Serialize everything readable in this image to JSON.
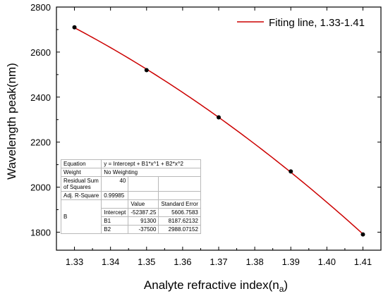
{
  "chart_data": {
    "type": "line",
    "xlabel": "Analyte refractive index(n",
    "xlabel_sub": "a",
    "xlabel_end": ")",
    "ylabel": "Wavelength peak(nm)",
    "xlim": [
      1.325,
      1.415
    ],
    "ylim": [
      1720,
      2800
    ],
    "xticks": [
      "1.33",
      "1.34",
      "1.35",
      "1.36",
      "1.37",
      "1.38",
      "1.39",
      "1.40",
      "1.41"
    ],
    "yticks": [
      "1800",
      "2000",
      "2200",
      "2400",
      "2600",
      "2800"
    ],
    "grid": false,
    "legend_position": "top-right",
    "series": [
      {
        "name": "Fiting line, 1.33-1.41",
        "color": "#cc0000",
        "kind": "fit",
        "equation": {
          "intercept": -52387.25,
          "b1": 91300,
          "b2": -37500
        }
      },
      {
        "kind": "points",
        "color": "#000000",
        "x": [
          1.33,
          1.35,
          1.37,
          1.39,
          1.41
        ],
        "y": [
          2710,
          2520,
          2310,
          2070,
          1790
        ]
      }
    ]
  },
  "fit_table": {
    "equation_label": "Equation",
    "equation_value": "y = Intercept + B1*x^1 + B2*x^2",
    "weight_label": "Weight",
    "weight_value": "No Weighting",
    "rss_label": "Residual Sum of Squares",
    "rss_value": "40",
    "r2_label": "Adj. R-Square",
    "r2_value": "0.99985",
    "value_header": "Value",
    "se_header": "Standard Error",
    "group_label": "B",
    "rows": [
      {
        "name": "Intercept",
        "value": "-52387.25",
        "se": "5606.7583"
      },
      {
        "name": "B1",
        "value": "91300",
        "se": "8187.62132"
      },
      {
        "name": "B2",
        "value": "-37500",
        "se": "2988.07152"
      }
    ]
  }
}
